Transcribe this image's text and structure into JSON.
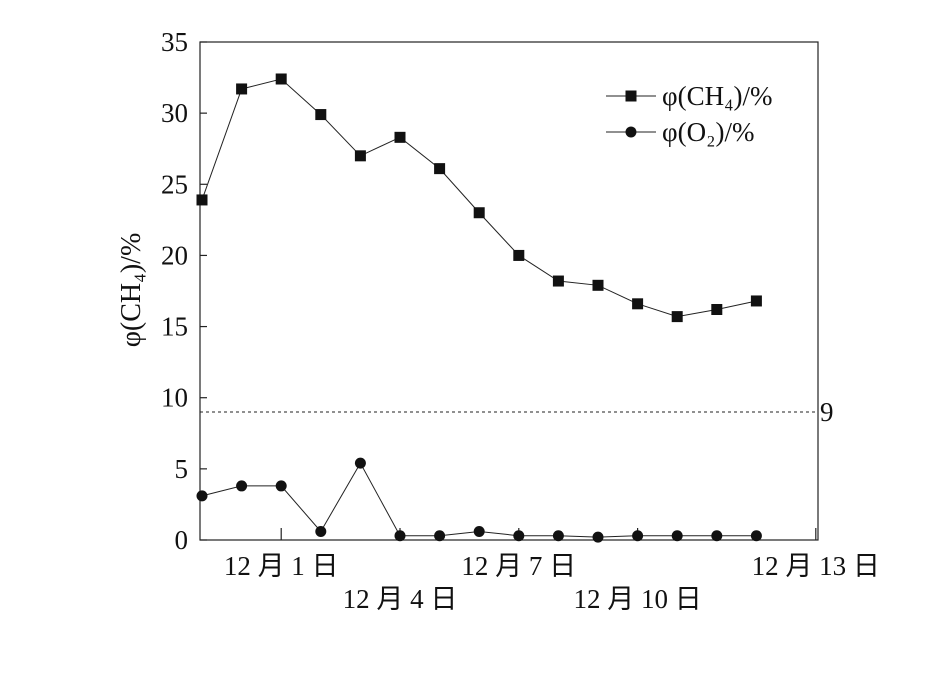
{
  "chart_data": {
    "type": "line",
    "ylabel": "φ(CH₄)/%",
    "ylim": [
      0,
      35
    ],
    "yticks": [
      0,
      5,
      10,
      15,
      20,
      25,
      30,
      35
    ],
    "xticks": [
      {
        "label": "12 月 1 日",
        "index": 2
      },
      {
        "label": "12 月 4 日",
        "index": 5
      },
      {
        "label": "12 月 7 日",
        "index": 8
      },
      {
        "label": "12 月 10 日",
        "index": 11
      },
      {
        "label": "12 月 13 日",
        "index": 15.5
      }
    ],
    "reference_line": {
      "value": 9,
      "label": "9"
    },
    "legend_position": "top-right",
    "grid": false,
    "series": [
      {
        "name": "φ(CH₄)/%",
        "marker": "square",
        "values": [
          23.9,
          31.7,
          32.4,
          29.9,
          27.0,
          28.3,
          26.1,
          23.0,
          20.0,
          18.2,
          17.9,
          16.6,
          15.7,
          16.2,
          16.8
        ]
      },
      {
        "name": "φ(O₂)/%",
        "marker": "circle",
        "values": [
          3.1,
          3.8,
          3.8,
          0.6,
          5.4,
          0.3,
          0.3,
          0.6,
          0.3,
          0.3,
          0.2,
          0.3,
          0.3,
          0.3,
          0.3
        ]
      }
    ]
  }
}
